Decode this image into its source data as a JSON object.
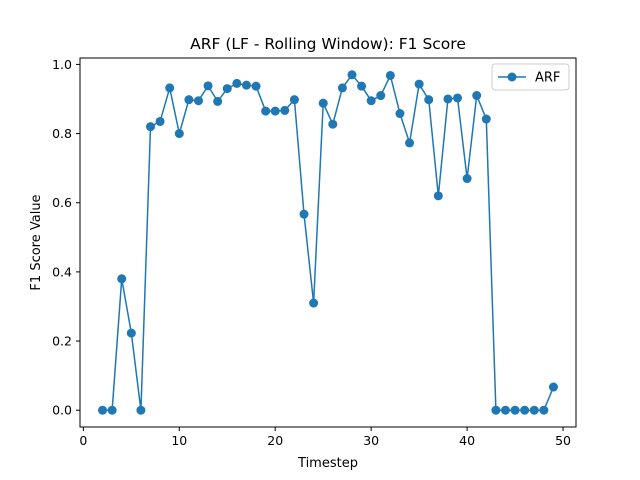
{
  "chart_data": {
    "type": "line",
    "title": "ARF (LF - Rolling Window): F1 Score",
    "xlabel": "Timestep",
    "ylabel": "F1 Score Value",
    "xlim": [
      -0.35,
      51.35
    ],
    "ylim": [
      -0.0485,
      1.0185
    ],
    "xticks": [
      0,
      10,
      20,
      30,
      40,
      50
    ],
    "xtick_labels": [
      "0",
      "10",
      "20",
      "30",
      "40",
      "50"
    ],
    "yticks": [
      0.0,
      0.2,
      0.4,
      0.6,
      0.8,
      1.0
    ],
    "ytick_labels": [
      "0.0",
      "0.2",
      "0.4",
      "0.6",
      "0.8",
      "1.0"
    ],
    "grid": false,
    "legend_position": "top-right",
    "color": "#1f77b4",
    "series": [
      {
        "name": "ARF",
        "marker": "circle",
        "x": [
          2,
          3,
          4,
          5,
          6,
          7,
          8,
          9,
          10,
          11,
          12,
          13,
          14,
          15,
          16,
          17,
          18,
          19,
          20,
          21,
          22,
          23,
          24,
          25,
          26,
          27,
          28,
          29,
          30,
          31,
          32,
          33,
          34,
          35,
          36,
          37,
          38,
          39,
          40,
          41,
          42,
          43,
          44,
          45,
          46,
          47,
          48,
          49
        ],
        "y": [
          0.0,
          0.0,
          0.38,
          0.223,
          0.0,
          0.82,
          0.835,
          0.932,
          0.8,
          0.898,
          0.895,
          0.938,
          0.893,
          0.93,
          0.945,
          0.94,
          0.937,
          0.865,
          0.865,
          0.867,
          0.898,
          0.567,
          0.31,
          0.888,
          0.827,
          0.932,
          0.97,
          0.937,
          0.895,
          0.91,
          0.968,
          0.858,
          0.773,
          0.943,
          0.898,
          0.62,
          0.9,
          0.903,
          0.67,
          0.91,
          0.842,
          0.0,
          0.0,
          0.0,
          0.0,
          0.0,
          0.0,
          0.067
        ]
      }
    ]
  }
}
